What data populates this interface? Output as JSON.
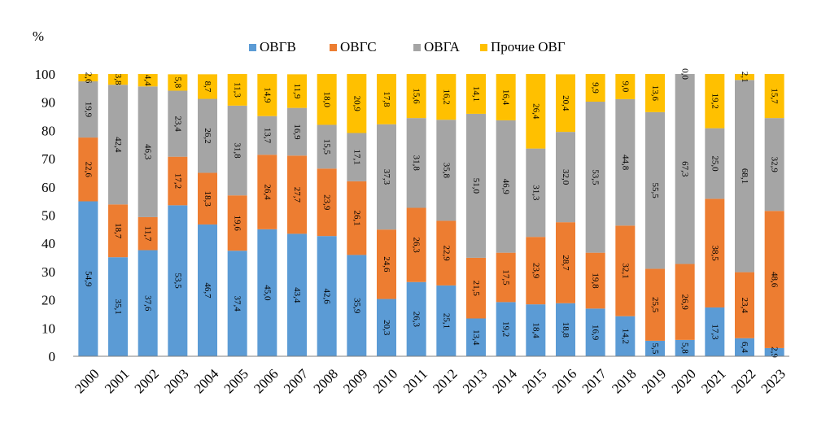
{
  "chart_data": {
    "type": "bar",
    "stacked": true,
    "ylabel": "%",
    "ylim": [
      0,
      100
    ],
    "yticks": [
      0,
      10,
      20,
      30,
      40,
      50,
      60,
      70,
      80,
      90,
      100
    ],
    "grid": false,
    "legend_position": "top",
    "categories": [
      "2000",
      "2001",
      "2002",
      "2003",
      "2004",
      "2005",
      "2006",
      "2007",
      "2008",
      "2009",
      "2010",
      "2011",
      "2012",
      "2013",
      "2014",
      "2015",
      "2016",
      "2017",
      "2018",
      "2019",
      "2020",
      "2021",
      "2022",
      "2023"
    ],
    "series": [
      {
        "name": "ОВГВ",
        "color": "#5B9BD5",
        "values": [
          54.9,
          35.1,
          37.6,
          53.5,
          46.7,
          37.4,
          45.0,
          43.4,
          42.6,
          35.9,
          20.3,
          26.3,
          25.1,
          13.4,
          19.2,
          18.4,
          18.8,
          16.9,
          14.2,
          5.5,
          5.8,
          17.3,
          6.4,
          2.9
        ],
        "labels": [
          "54,9",
          "35,1",
          "37,6",
          "53,5",
          "46,7",
          "37,4",
          "45,0",
          "43,4",
          "42,6",
          "35,9",
          "20,3",
          "26,3",
          "25,1",
          "13,4",
          "19,2",
          "18,4",
          "18,8",
          "16,9",
          "14,2",
          "5,5",
          "5,8",
          "17,3",
          "6,4",
          "2,9"
        ]
      },
      {
        "name": "ОВГС",
        "color": "#ED7D31",
        "values": [
          22.6,
          18.7,
          11.7,
          17.2,
          18.3,
          19.6,
          26.4,
          27.7,
          23.9,
          26.1,
          24.6,
          26.3,
          22.9,
          21.5,
          17.5,
          23.9,
          28.7,
          19.8,
          32.1,
          25.5,
          26.9,
          38.5,
          23.4,
          48.6
        ],
        "labels": [
          "22,6",
          "18,7",
          "11,7",
          "17,2",
          "18,3",
          "19,6",
          "26,4",
          "27,7",
          "23,9",
          "26,1",
          "24,6",
          "26,3",
          "22,9",
          "21,5",
          "17,5",
          "23,9",
          "28,7",
          "19,8",
          "32,1",
          "25,5",
          "26,9",
          "38,5",
          "23,4",
          "48,6"
        ]
      },
      {
        "name": "ОВГА",
        "color": "#A5A5A5",
        "values": [
          19.9,
          42.4,
          46.3,
          23.4,
          26.2,
          31.8,
          13.7,
          16.9,
          15.5,
          17.1,
          37.3,
          31.8,
          35.8,
          51.0,
          46.9,
          31.3,
          32.0,
          53.5,
          44.8,
          55.5,
          67.3,
          25.0,
          68.1,
          32.9
        ],
        "labels": [
          "19,9",
          "42,4",
          "46,3",
          "23,4",
          "26,2",
          "31,8",
          "13,7",
          "16,9",
          "15,5",
          "17,1",
          "37,3",
          "31,8",
          "35,8",
          "51,0",
          "46,9",
          "31,3",
          "32,0",
          "53,5",
          "44,8",
          "55,5",
          "67,3",
          "25,0",
          "68,1",
          "32,9"
        ]
      },
      {
        "name": "Прочие ОВГ",
        "color": "#FFC000",
        "values": [
          2.6,
          3.8,
          4.4,
          5.8,
          8.7,
          11.3,
          14.9,
          11.9,
          18.0,
          20.9,
          17.8,
          15.6,
          16.2,
          14.1,
          16.4,
          26.4,
          20.4,
          9.9,
          9.0,
          13.6,
          0.0,
          19.2,
          2.1,
          15.7
        ],
        "labels": [
          "2,6",
          "3,8",
          "4,4",
          "5,8",
          "8,7",
          "11,3",
          "14,9",
          "11,9",
          "18,0",
          "20,9",
          "17,8",
          "15,6",
          "16,2",
          "14,1",
          "16,4",
          "26,4",
          "20,4",
          "9,9",
          "9,0",
          "13,6",
          "0,0",
          "19,2",
          "2,1",
          "15,7"
        ]
      }
    ]
  }
}
